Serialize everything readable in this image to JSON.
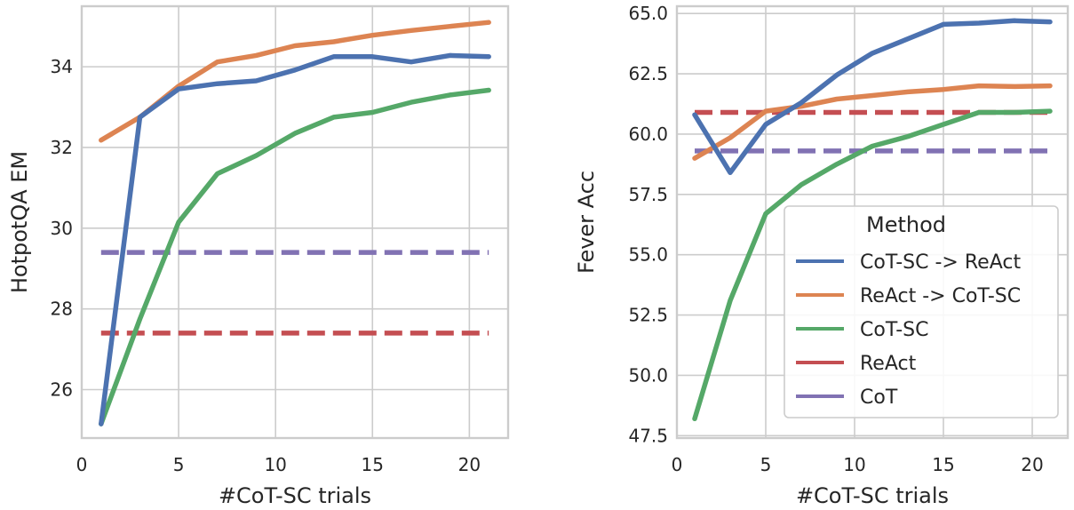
{
  "series_colors": {
    "CoT-SC -> ReAct": "#4c72b0",
    "ReAct -> CoT-SC": "#dd8452",
    "CoT-SC": "#55a868",
    "ReAct": "#c44e52",
    "CoT": "#8172b3"
  },
  "legend": {
    "title": "Method",
    "entries": [
      "CoT-SC -> ReAct",
      "ReAct -> CoT-SC",
      "CoT-SC",
      "ReAct",
      "CoT"
    ]
  },
  "chart_data": [
    {
      "type": "line",
      "xlabel": "#CoT-SC trials",
      "ylabel": "HotpotQA EM",
      "xlim": [
        0,
        22
      ],
      "ylim": [
        24.8,
        35.5
      ],
      "xticks": [
        0,
        5,
        10,
        15,
        20
      ],
      "xtick_labels": [
        "0",
        "5",
        "10",
        "15",
        "20"
      ],
      "yticks": [
        26,
        28,
        30,
        32,
        34
      ],
      "ytick_labels": [
        "26",
        "28",
        "30",
        "32",
        "34"
      ],
      "grid": true,
      "legend": null,
      "x": [
        1,
        3,
        5,
        7,
        9,
        11,
        13,
        15,
        17,
        19,
        21
      ],
      "series": [
        {
          "name": "CoT-SC -> ReAct",
          "style": "solid",
          "values": [
            25.15,
            32.75,
            33.45,
            33.58,
            33.65,
            33.92,
            34.25,
            34.25,
            34.12,
            34.28,
            34.25
          ]
        },
        {
          "name": "ReAct -> CoT-SC",
          "style": "solid",
          "values": [
            32.18,
            32.75,
            33.52,
            34.12,
            34.28,
            34.52,
            34.62,
            34.78,
            34.9,
            35.0,
            35.1
          ]
        },
        {
          "name": "CoT-SC",
          "style": "solid",
          "values": [
            25.15,
            27.75,
            30.15,
            31.35,
            31.8,
            32.35,
            32.75,
            32.87,
            33.12,
            33.3,
            33.42
          ]
        },
        {
          "name": "ReAct",
          "style": "dashed",
          "values": [
            27.4,
            27.4,
            27.4,
            27.4,
            27.4,
            27.4,
            27.4,
            27.4,
            27.4,
            27.4,
            27.4
          ]
        },
        {
          "name": "CoT",
          "style": "dashed",
          "values": [
            29.4,
            29.4,
            29.4,
            29.4,
            29.4,
            29.4,
            29.4,
            29.4,
            29.4,
            29.4,
            29.4
          ]
        }
      ]
    },
    {
      "type": "line",
      "xlabel": "#CoT-SC trials",
      "ylabel": "Fever Acc",
      "xlim": [
        0,
        22
      ],
      "ylim": [
        47.4,
        65.3
      ],
      "xticks": [
        0,
        5,
        10,
        15,
        20
      ],
      "xtick_labels": [
        "0",
        "5",
        "10",
        "15",
        "20"
      ],
      "yticks": [
        47.5,
        50.0,
        52.5,
        55.0,
        57.5,
        60.0,
        62.5,
        65.0
      ],
      "ytick_labels": [
        "47.5",
        "50.0",
        "52.5",
        "55.0",
        "57.5",
        "60.0",
        "62.5",
        "65.0"
      ],
      "grid": true,
      "legend": "lower-right",
      "x": [
        1,
        3,
        5,
        7,
        9,
        11,
        13,
        15,
        17,
        19,
        21
      ],
      "series": [
        {
          "name": "CoT-SC -> ReAct",
          "style": "solid",
          "values": [
            60.8,
            58.4,
            60.4,
            61.3,
            62.45,
            63.35,
            63.95,
            64.55,
            64.6,
            64.7,
            64.65
          ]
        },
        {
          "name": "ReAct -> CoT-SC",
          "style": "solid",
          "values": [
            59.0,
            59.85,
            60.95,
            61.15,
            61.45,
            61.6,
            61.75,
            61.85,
            62.0,
            61.97,
            62.0
          ]
        },
        {
          "name": "CoT-SC",
          "style": "solid",
          "values": [
            48.2,
            53.1,
            56.7,
            57.9,
            58.75,
            59.5,
            59.9,
            60.4,
            60.9,
            60.9,
            60.95
          ]
        },
        {
          "name": "ReAct",
          "style": "dashed",
          "values": [
            60.9,
            60.9,
            60.9,
            60.9,
            60.9,
            60.9,
            60.9,
            60.9,
            60.9,
            60.9,
            60.9
          ]
        },
        {
          "name": "CoT",
          "style": "dashed",
          "values": [
            59.3,
            59.3,
            59.3,
            59.3,
            59.3,
            59.3,
            59.3,
            59.3,
            59.3,
            59.3,
            59.3
          ]
        }
      ]
    }
  ]
}
